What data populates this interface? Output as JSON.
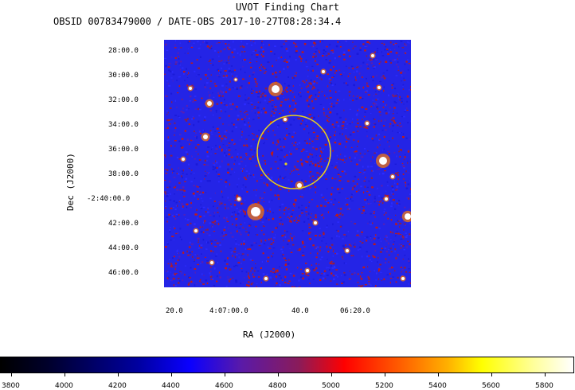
{
  "header": {
    "title": "UVOT Finding Chart",
    "subtitle": "OBSID 00783479000 / DATE-OBS 2017-10-27T08:28:34.4"
  },
  "axes": {
    "ylabel": "Dec (J2000)",
    "xlabel": "RA (J2000)",
    "dec_ticks": [
      "28:00.0",
      "30:00.0",
      "32:00.0",
      "34:00.0",
      "36:00.0",
      "38:00.0",
      "-2:40:00.0",
      "42:00.0",
      "44:00.0",
      "46:00.0"
    ],
    "ra_ticks": [
      "20.0",
      "4:07:00.0",
      "40.0",
      "06:20.0"
    ]
  },
  "colorbar": {
    "ticks": [
      "3800",
      "4000",
      "4200",
      "4400",
      "4600",
      "4800",
      "5000",
      "5200",
      "5400",
      "5600",
      "5800"
    ]
  },
  "colors": {
    "background_noise": [
      "#1a1ad8",
      "#2b2bff",
      "#5b1fb0",
      "#8a1e4a",
      "#c41a12"
    ],
    "source_circle": "#e8d21c"
  }
}
